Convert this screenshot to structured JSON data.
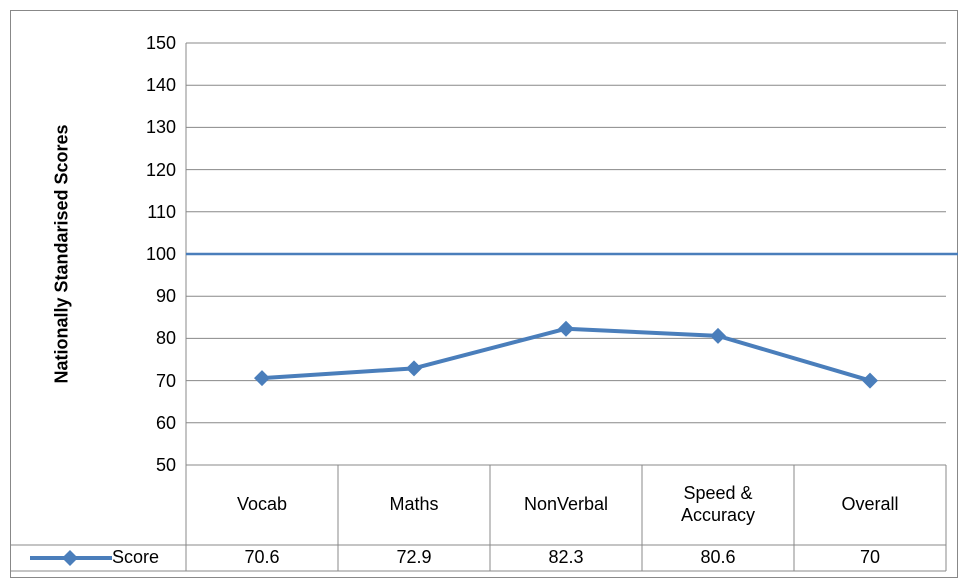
{
  "chart_data": {
    "type": "line",
    "y_axis_label": "Nationally Standarised Scores",
    "categories": [
      "Vocab",
      "Maths",
      "NonVerbal",
      "Speed & Accuracy",
      "Overall"
    ],
    "series": [
      {
        "name": "Score",
        "color": "#4a7ebb",
        "values": [
          70.6,
          72.9,
          82.3,
          80.6,
          70
        ]
      }
    ],
    "reference_lines": [
      100
    ],
    "reference_color": "#4a7ebb",
    "ylim": [
      50,
      150
    ],
    "yticks": [
      50,
      60,
      70,
      80,
      90,
      100,
      110,
      120,
      130,
      140,
      150
    ],
    "grid": true,
    "data_table": true
  }
}
